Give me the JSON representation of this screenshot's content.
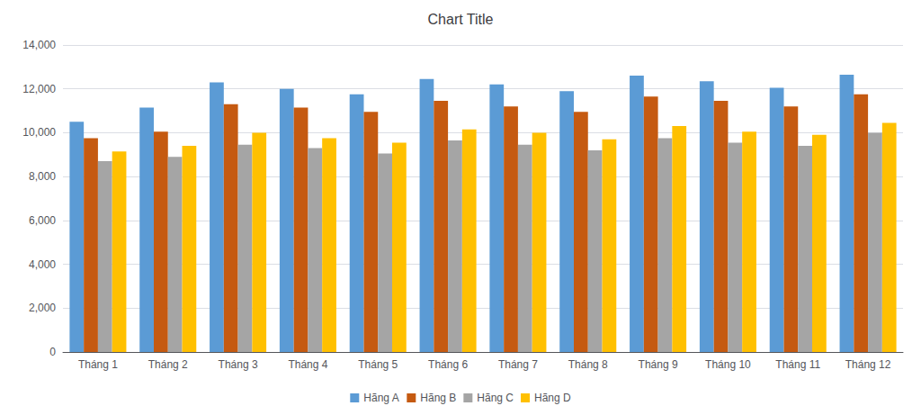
{
  "chart_data": {
    "type": "bar",
    "title": "Chart Title",
    "categories": [
      "Tháng 1",
      "Tháng 2",
      "Tháng 3",
      "Tháng 4",
      "Tháng 5",
      "Tháng 6",
      "Tháng 7",
      "Tháng 8",
      "Tháng 9",
      "Tháng 10",
      "Tháng 11",
      "Tháng 12"
    ],
    "series": [
      {
        "name": "Hãng A",
        "color": "#5B9BD5",
        "values": [
          10500,
          11150,
          12300,
          12000,
          11750,
          12450,
          12200,
          11900,
          12600,
          12350,
          12050,
          12650
        ]
      },
      {
        "name": "Hãng B",
        "color": "#C55A11",
        "values": [
          9750,
          10050,
          11300,
          11150,
          10950,
          11450,
          11200,
          10950,
          11650,
          11450,
          11200,
          11750
        ]
      },
      {
        "name": "Hãng C",
        "color": "#A5A5A5",
        "values": [
          8700,
          8900,
          9450,
          9300,
          9050,
          9650,
          9450,
          9200,
          9750,
          9550,
          9400,
          10000
        ]
      },
      {
        "name": "Hãng D",
        "color": "#FFC000",
        "values": [
          9150,
          9400,
          10000,
          9750,
          9550,
          10150,
          10000,
          9700,
          10300,
          10050,
          9900,
          10450
        ]
      }
    ],
    "ylim": [
      0,
      14000
    ],
    "yticks": [
      0,
      {
        "value": 2000,
        "label": "2,000"
      },
      {
        "value": 4000,
        "label": "4,000"
      },
      {
        "value": 6000,
        "label": "6,000"
      },
      {
        "value": 8000,
        "label": "8,000"
      },
      {
        "value": 10000,
        "label": "10,000"
      },
      {
        "value": 12000,
        "label": "12,000"
      },
      {
        "value": 14000,
        "label": "14,000"
      }
    ],
    "grid": true,
    "legend": "bottom"
  }
}
